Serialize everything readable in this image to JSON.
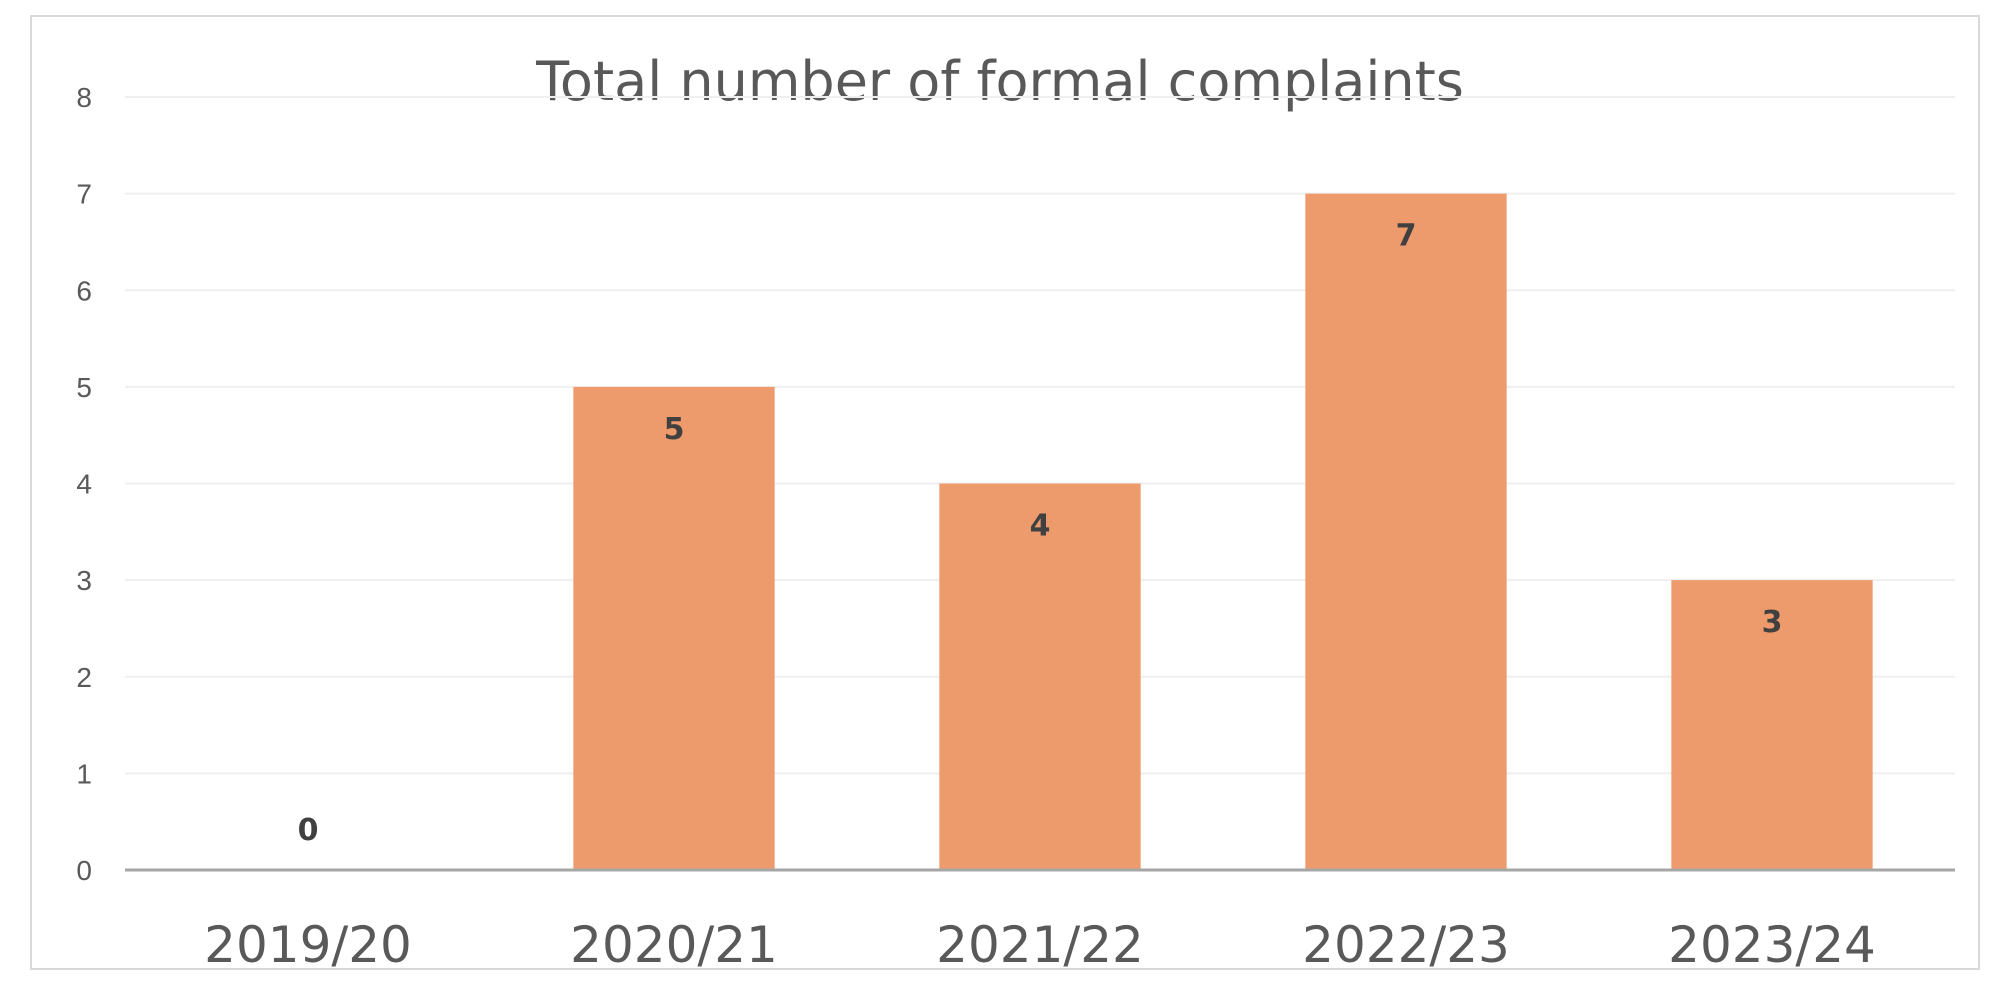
{
  "chart_data": {
    "type": "bar",
    "title": "Total number of formal complaints",
    "xlabel": "",
    "ylabel": "",
    "categories": [
      "2019/20",
      "2020/21",
      "2021/22",
      "2022/23",
      "2023/24"
    ],
    "values": [
      0,
      5,
      4,
      7,
      3
    ],
    "data_labels": [
      "0",
      "5",
      "4",
      "7",
      "3"
    ],
    "ylim": [
      0,
      8
    ],
    "yticks": [
      0,
      1,
      2,
      3,
      4,
      5,
      6,
      7,
      8
    ],
    "ytick_labels": [
      "0",
      "1",
      "2",
      "3",
      "4",
      "5",
      "6",
      "7",
      "8"
    ],
    "grid": true,
    "legend": "none",
    "colors": {
      "bar": "#ED9A6C",
      "grid": "#efefef",
      "axis": "#a6a6a6",
      "text": "#595959"
    }
  }
}
